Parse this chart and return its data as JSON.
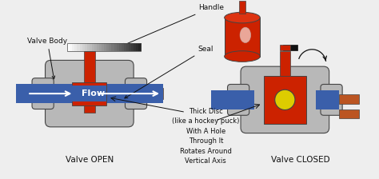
{
  "bg_color": "#eeeeee",
  "gray": "#b8b8b8",
  "gray_dark": "#999999",
  "red": "#cc2200",
  "red_dark": "#aa1800",
  "blue": "#3a5faa",
  "blue_dark": "#2a4080",
  "orange_pipe": "#bb5522",
  "white": "#ffffff",
  "yellow": "#ddcc00",
  "black": "#111111",
  "dark_gray": "#444444",
  "title_open": "Valve OPEN",
  "title_closed": "Valve CLOSED",
  "label_valve_body": "Valve Body",
  "label_handle": "Handle",
  "label_seal": "Seal",
  "label_flow": "Flow",
  "label_thick_disc": "Thick Disc\n(like a hockey puck)\nWith A Hole\nThrough It\nRotates Around\nVertical Axis",
  "font_size_labels": 6.5,
  "font_size_title": 7.5,
  "font_size_flow": 8
}
